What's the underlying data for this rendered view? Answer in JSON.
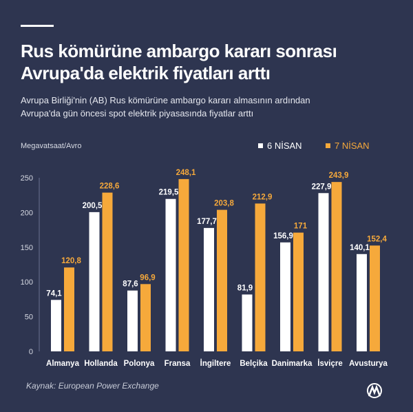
{
  "header": {
    "title_line1": "Rus kömürüne ambargo kararı sonrası",
    "title_line2": "Avrupa'da elektrik fiyatları arttı",
    "subtitle_line1": "Avrupa Birliği'nin (AB) Rus kömürüne ambargo kararı almasının ardından",
    "subtitle_line2": "Avrupa'da gün öncesi spot elektrik piyasasında fiyatlar arttı"
  },
  "footer": {
    "source": "Kaynak: European Power Exchange",
    "logo": "AA"
  },
  "colors": {
    "background": "#2e3550",
    "series1": "#ffffff",
    "series2": "#f6a93b"
  },
  "chart_data": {
    "type": "bar",
    "ylabel": "Megavatsaat/Avro",
    "ylim": [
      0,
      250
    ],
    "yticks": [
      0,
      50,
      100,
      150,
      200,
      250
    ],
    "categories": [
      "Almanya",
      "Hollanda",
      "Polonya",
      "Fransa",
      "İngiltere",
      "Belçika",
      "Danimarka",
      "İsviçre",
      "Avusturya"
    ],
    "series": [
      {
        "name": "6 NİSAN",
        "color": "#ffffff",
        "values": [
          74.1,
          200.5,
          87.6,
          219.5,
          177.7,
          81.9,
          156.9,
          227.9,
          140.1
        ],
        "labels": [
          "74,1",
          "200,5",
          "87,6",
          "219,5",
          "177,7",
          "81,9",
          "156,9",
          "227,9",
          "140,1"
        ]
      },
      {
        "name": "7 NİSAN",
        "color": "#f6a93b",
        "values": [
          120.8,
          228.6,
          96.9,
          248.1,
          203.8,
          212.9,
          171,
          243.9,
          152.4
        ],
        "labels": [
          "120,8",
          "228,6",
          "96,9",
          "248,1",
          "203,8",
          "212,9",
          "171",
          "243,9",
          "152,4"
        ]
      }
    ],
    "legend": "top-right",
    "grid": false
  }
}
